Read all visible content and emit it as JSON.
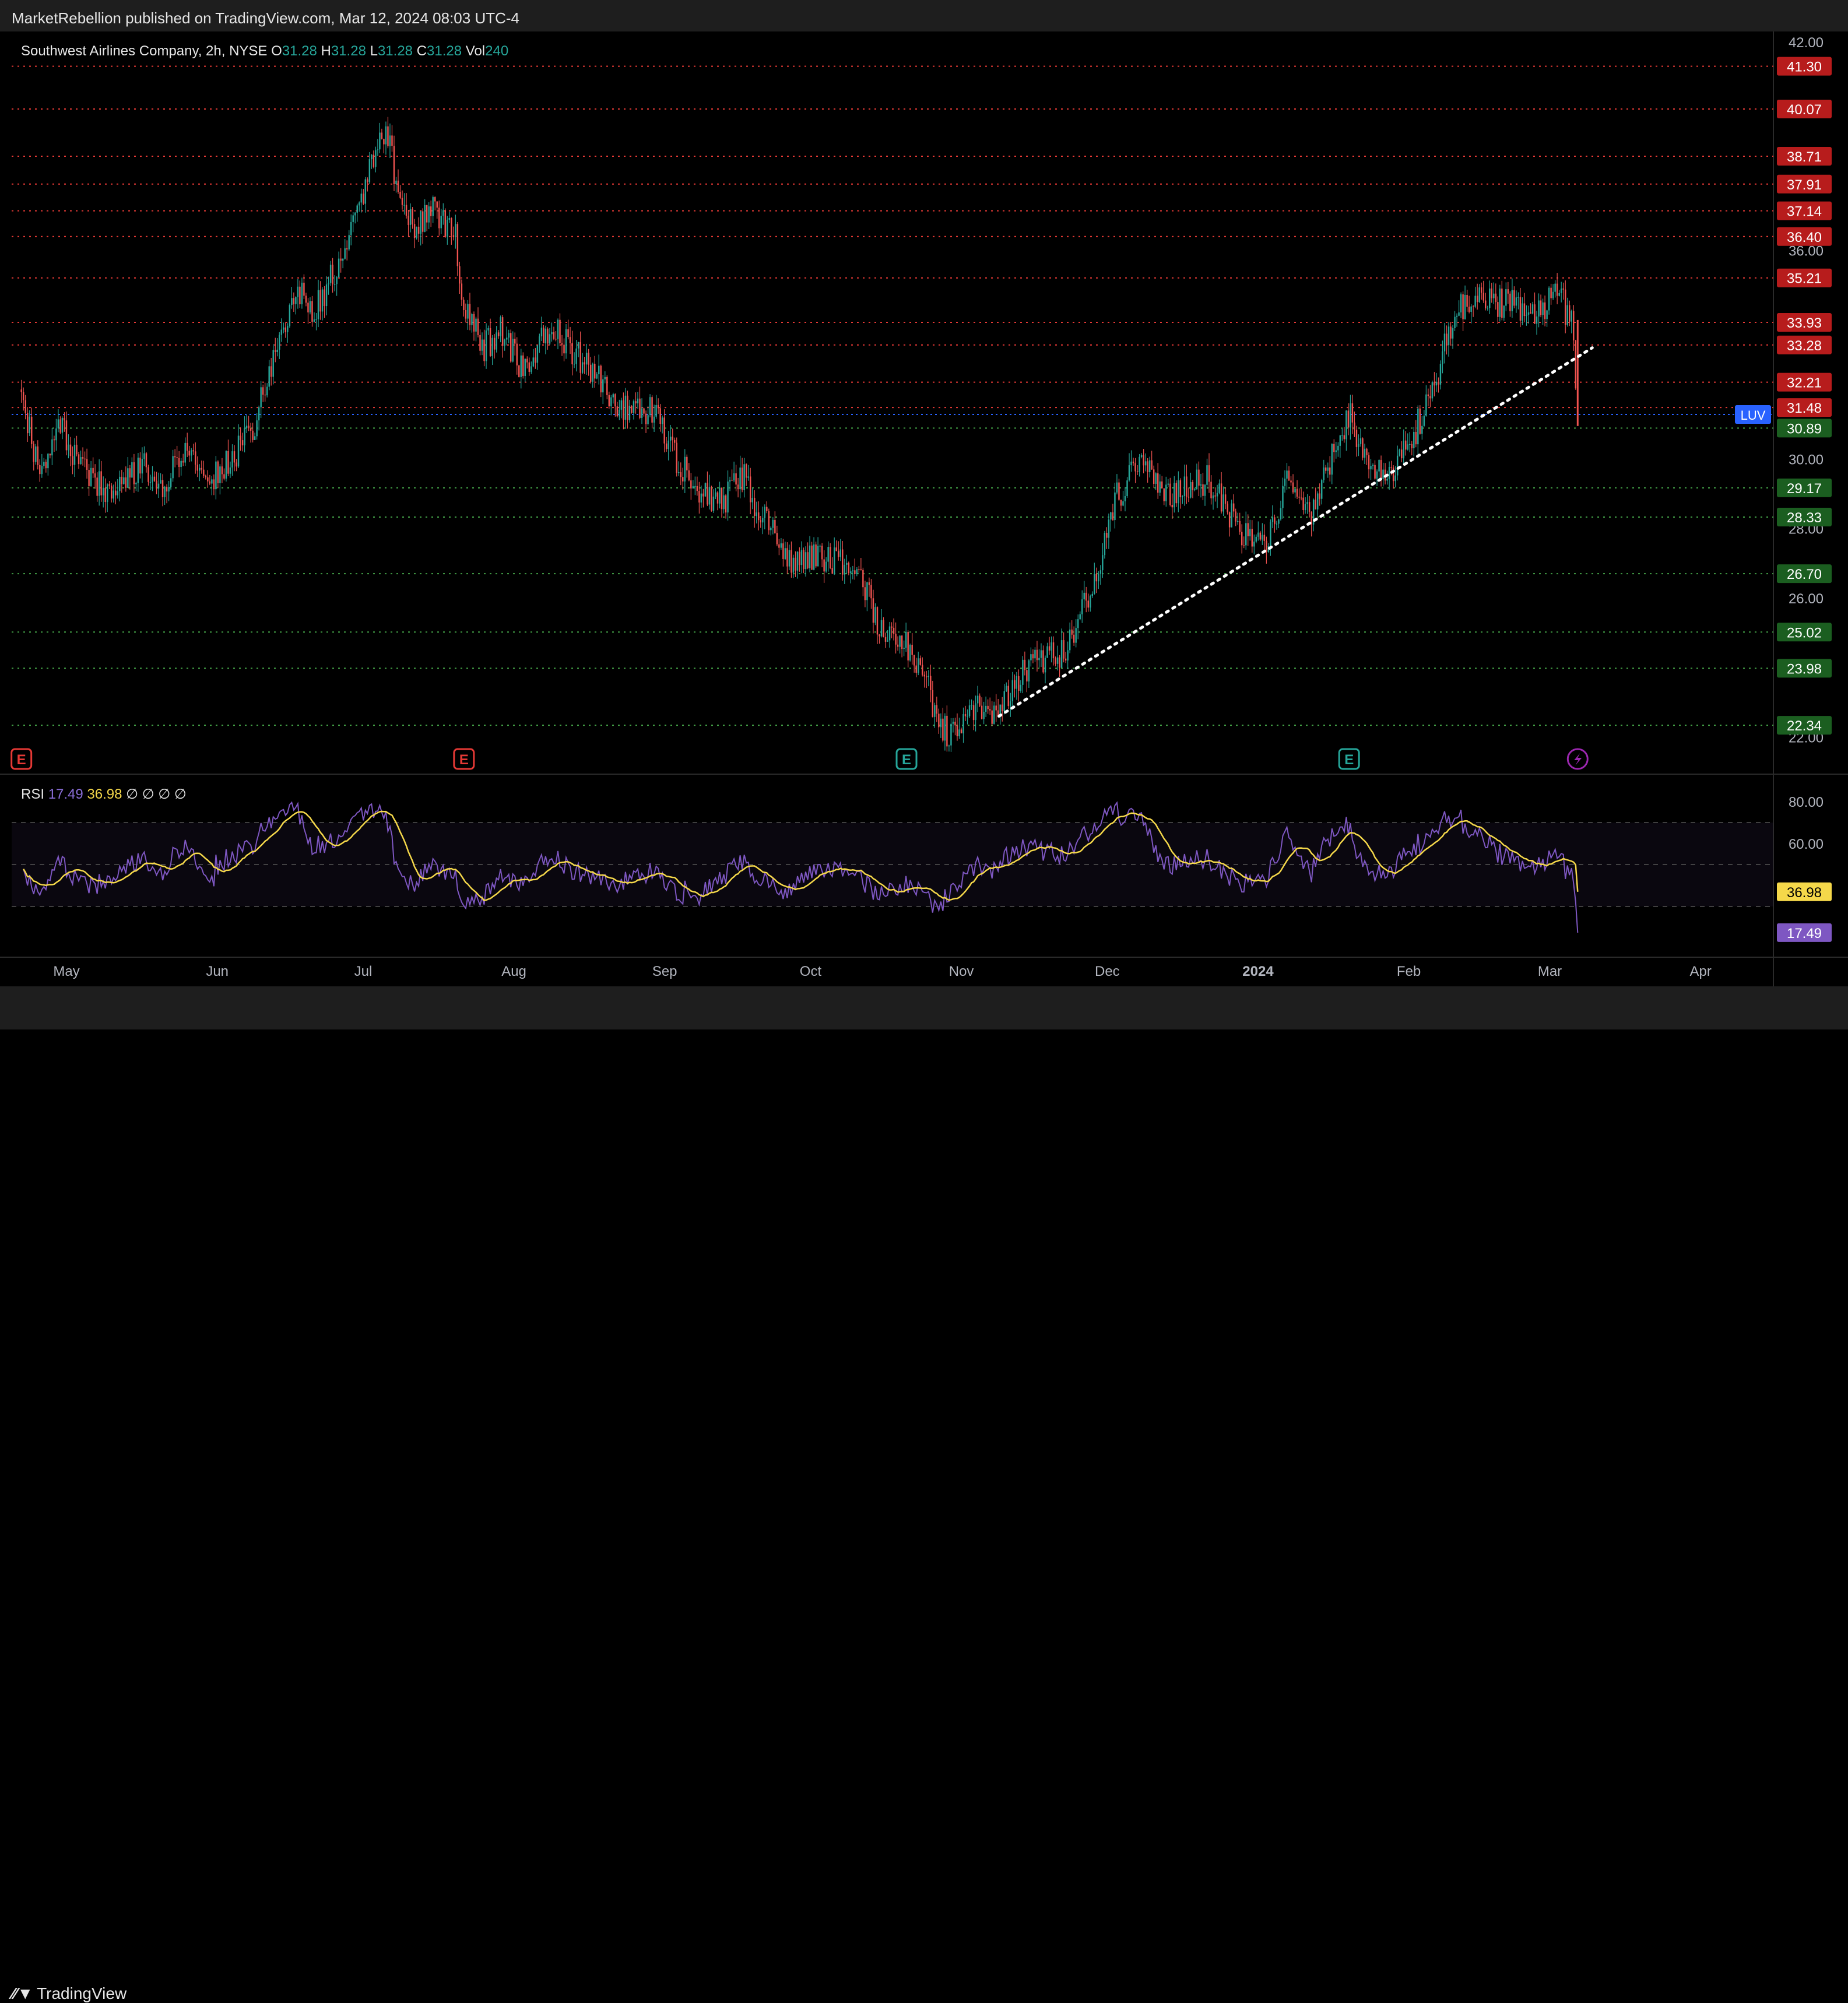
{
  "header": {
    "published": "MarketRebellion published on TradingView.com, Mar 12, 2024 08:03 UTC-4"
  },
  "footer": {
    "brand": "TradingView"
  },
  "legend": {
    "symbol": "Southwest Airlines Company, 2h, NYSE",
    "o_label": "O",
    "o": "31.28",
    "h_label": "H",
    "h": "31.28",
    "l_label": "L",
    "l": "31.28",
    "c_label": "C",
    "c": "31.28",
    "vol_label": "Vol",
    "vol": "240"
  },
  "rsi_legend": {
    "label": "RSI",
    "rsi": "17.49",
    "ma": "36.98",
    "extras": [
      "∅",
      "∅",
      "∅",
      "∅"
    ]
  },
  "colors": {
    "up": "#26a69a",
    "down": "#ef5350",
    "resistance": "#e53935",
    "support": "#43a047",
    "price_line": "#2962ff",
    "rsi": "#7e57c2",
    "rsi_ma": "#f5d84a",
    "trendline": "#ffffff"
  },
  "chart_data": [
    {
      "type": "candlestick",
      "title": "Southwest Airlines Company, 2h, NYSE",
      "y_ticks": [
        "42.00",
        "36.00",
        "30.00",
        "28.00",
        "26.00",
        "22.00"
      ],
      "y_range": [
        21.0,
        42.3
      ],
      "x_ticks": [
        "May",
        "Jun",
        "Jul",
        "Aug",
        "Sep",
        "Oct",
        "Nov",
        "Dec",
        "2024",
        "Feb",
        "Mar",
        "Apr"
      ],
      "resistance_levels": [
        "41.30",
        "40.07",
        "38.71",
        "37.91",
        "37.14",
        "36.40",
        "35.21",
        "33.93",
        "33.28",
        "32.21",
        "31.48"
      ],
      "support_levels": [
        "30.89",
        "29.17",
        "28.33",
        "26.70",
        "25.02",
        "23.98",
        "22.34"
      ],
      "current_price_label": "LUV",
      "current_price": 31.28,
      "trendline": {
        "from": [
          "Nov 14 2023",
          22.6
        ],
        "to": [
          "Mar 15 2024",
          33.2
        ],
        "style": "dotted"
      },
      "events": [
        {
          "date": "Apr 27 2023",
          "icon": "E",
          "kind": "earnings-past"
        },
        {
          "date": "Jul 27 2023",
          "icon": "E",
          "kind": "earnings-past"
        },
        {
          "date": "Oct 26 2023",
          "icon": "E",
          "kind": "earnings"
        },
        {
          "date": "Jan 25 2024",
          "icon": "E",
          "kind": "earnings"
        },
        {
          "date": "Mar 12 2024",
          "icon": "lightning",
          "kind": "news"
        }
      ],
      "price_path": [
        [
          "Apr 27 2023",
          32.0
        ],
        [
          "May 1 2023",
          29.4
        ],
        [
          "May 5 2023",
          30.9
        ],
        [
          "May 10 2023",
          29.6
        ],
        [
          "May 16 2023",
          29.0
        ],
        [
          "May 22 2023",
          29.8
        ],
        [
          "May 26 2023",
          29.2
        ],
        [
          "May 31 2023",
          30.3
        ],
        [
          "Jun 5 2023",
          29.4
        ],
        [
          "Jun 9 2023",
          30.0
        ],
        [
          "Jun 13 2023",
          30.7
        ],
        [
          "Jun 15 2023",
          31.5
        ],
        [
          "Jun 19 2023",
          33.4
        ],
        [
          "Jun 22 2023",
          34.9
        ],
        [
          "Jun 26 2023",
          34.3
        ],
        [
          "Jun 29 2023",
          35.0
        ],
        [
          "Jul 3 2023",
          36.2
        ],
        [
          "Jul 6 2023",
          37.6
        ],
        [
          "Jul 9 2023",
          38.7
        ],
        [
          "Jul 11 2023",
          39.7
        ],
        [
          "Jul 13 2023",
          38.0
        ],
        [
          "Jul 17 2023",
          36.4
        ],
        [
          "Jul 20 2023",
          37.2
        ],
        [
          "Jul 25 2023",
          36.6
        ],
        [
          "Jul 27 2023",
          34.5
        ],
        [
          "Jul 31 2023",
          33.2
        ],
        [
          "Aug 4 2023",
          33.7
        ],
        [
          "Aug 8 2023",
          32.6
        ],
        [
          "Aug 14 2023",
          33.8
        ],
        [
          "Aug 21 2023",
          32.7
        ],
        [
          "Aug 28 2023",
          31.6
        ],
        [
          "Sep 4 2023",
          31.4
        ],
        [
          "Sep 7 2023",
          30.4
        ],
        [
          "Sep 12 2023",
          29.3
        ],
        [
          "Sep 18 2023",
          28.7
        ],
        [
          "Sep 22 2023",
          29.6
        ],
        [
          "Sep 26 2023",
          28.4
        ],
        [
          "Oct 2 2023",
          27.0
        ],
        [
          "Oct 9 2023",
          27.2
        ],
        [
          "Oct 16 2023",
          26.8
        ],
        [
          "Oct 20 2023",
          25.4
        ],
        [
          "Oct 26 2023",
          24.6
        ],
        [
          "Oct 30 2023",
          23.6
        ],
        [
          "Nov 2 2023",
          22.2
        ],
        [
          "Nov 5 2023",
          22.1
        ],
        [
          "Nov 9 2023",
          22.9
        ],
        [
          "Nov 13 2023",
          22.6
        ],
        [
          "Nov 17 2023",
          23.6
        ],
        [
          "Nov 21 2023",
          24.2
        ],
        [
          "Nov 28 2023",
          24.5
        ],
        [
          "Dec 4 2023",
          26.6
        ],
        [
          "Dec 8 2023",
          28.9
        ],
        [
          "Dec 13 2023",
          29.8
        ],
        [
          "Dec 19 2023",
          29.0
        ],
        [
          "Dec 27 2023",
          29.4
        ],
        [
          "Jan 3 2024",
          27.9
        ],
        [
          "Jan 8 2024",
          27.6
        ],
        [
          "Jan 12 2024",
          29.3
        ],
        [
          "Jan 17 2024",
          28.2
        ],
        [
          "Jan 22 2024",
          30.4
        ],
        [
          "Jan 25 2024",
          31.3
        ],
        [
          "Jan 29 2024",
          29.8
        ],
        [
          "Feb 2 2024",
          29.4
        ],
        [
          "Feb 7 2024",
          30.6
        ],
        [
          "Feb 12 2024",
          32.4
        ],
        [
          "Feb 16 2024",
          34.3
        ],
        [
          "Feb 22 2024",
          34.6
        ],
        [
          "Feb 28 2024",
          34.4
        ],
        [
          "Mar 4 2024",
          34.2
        ],
        [
          "Mar 8 2024",
          34.8
        ],
        [
          "Mar 11 2024",
          33.8
        ],
        [
          "Mar 12 2024",
          31.28
        ]
      ]
    },
    {
      "type": "line",
      "title": "RSI",
      "y_ticks": [
        "80.00",
        "60.00"
      ],
      "y_range": [
        8,
        92
      ],
      "band": [
        30,
        70
      ],
      "midline": 50,
      "last_values": {
        "rsi": "17.49",
        "ma": "36.98"
      }
    }
  ]
}
